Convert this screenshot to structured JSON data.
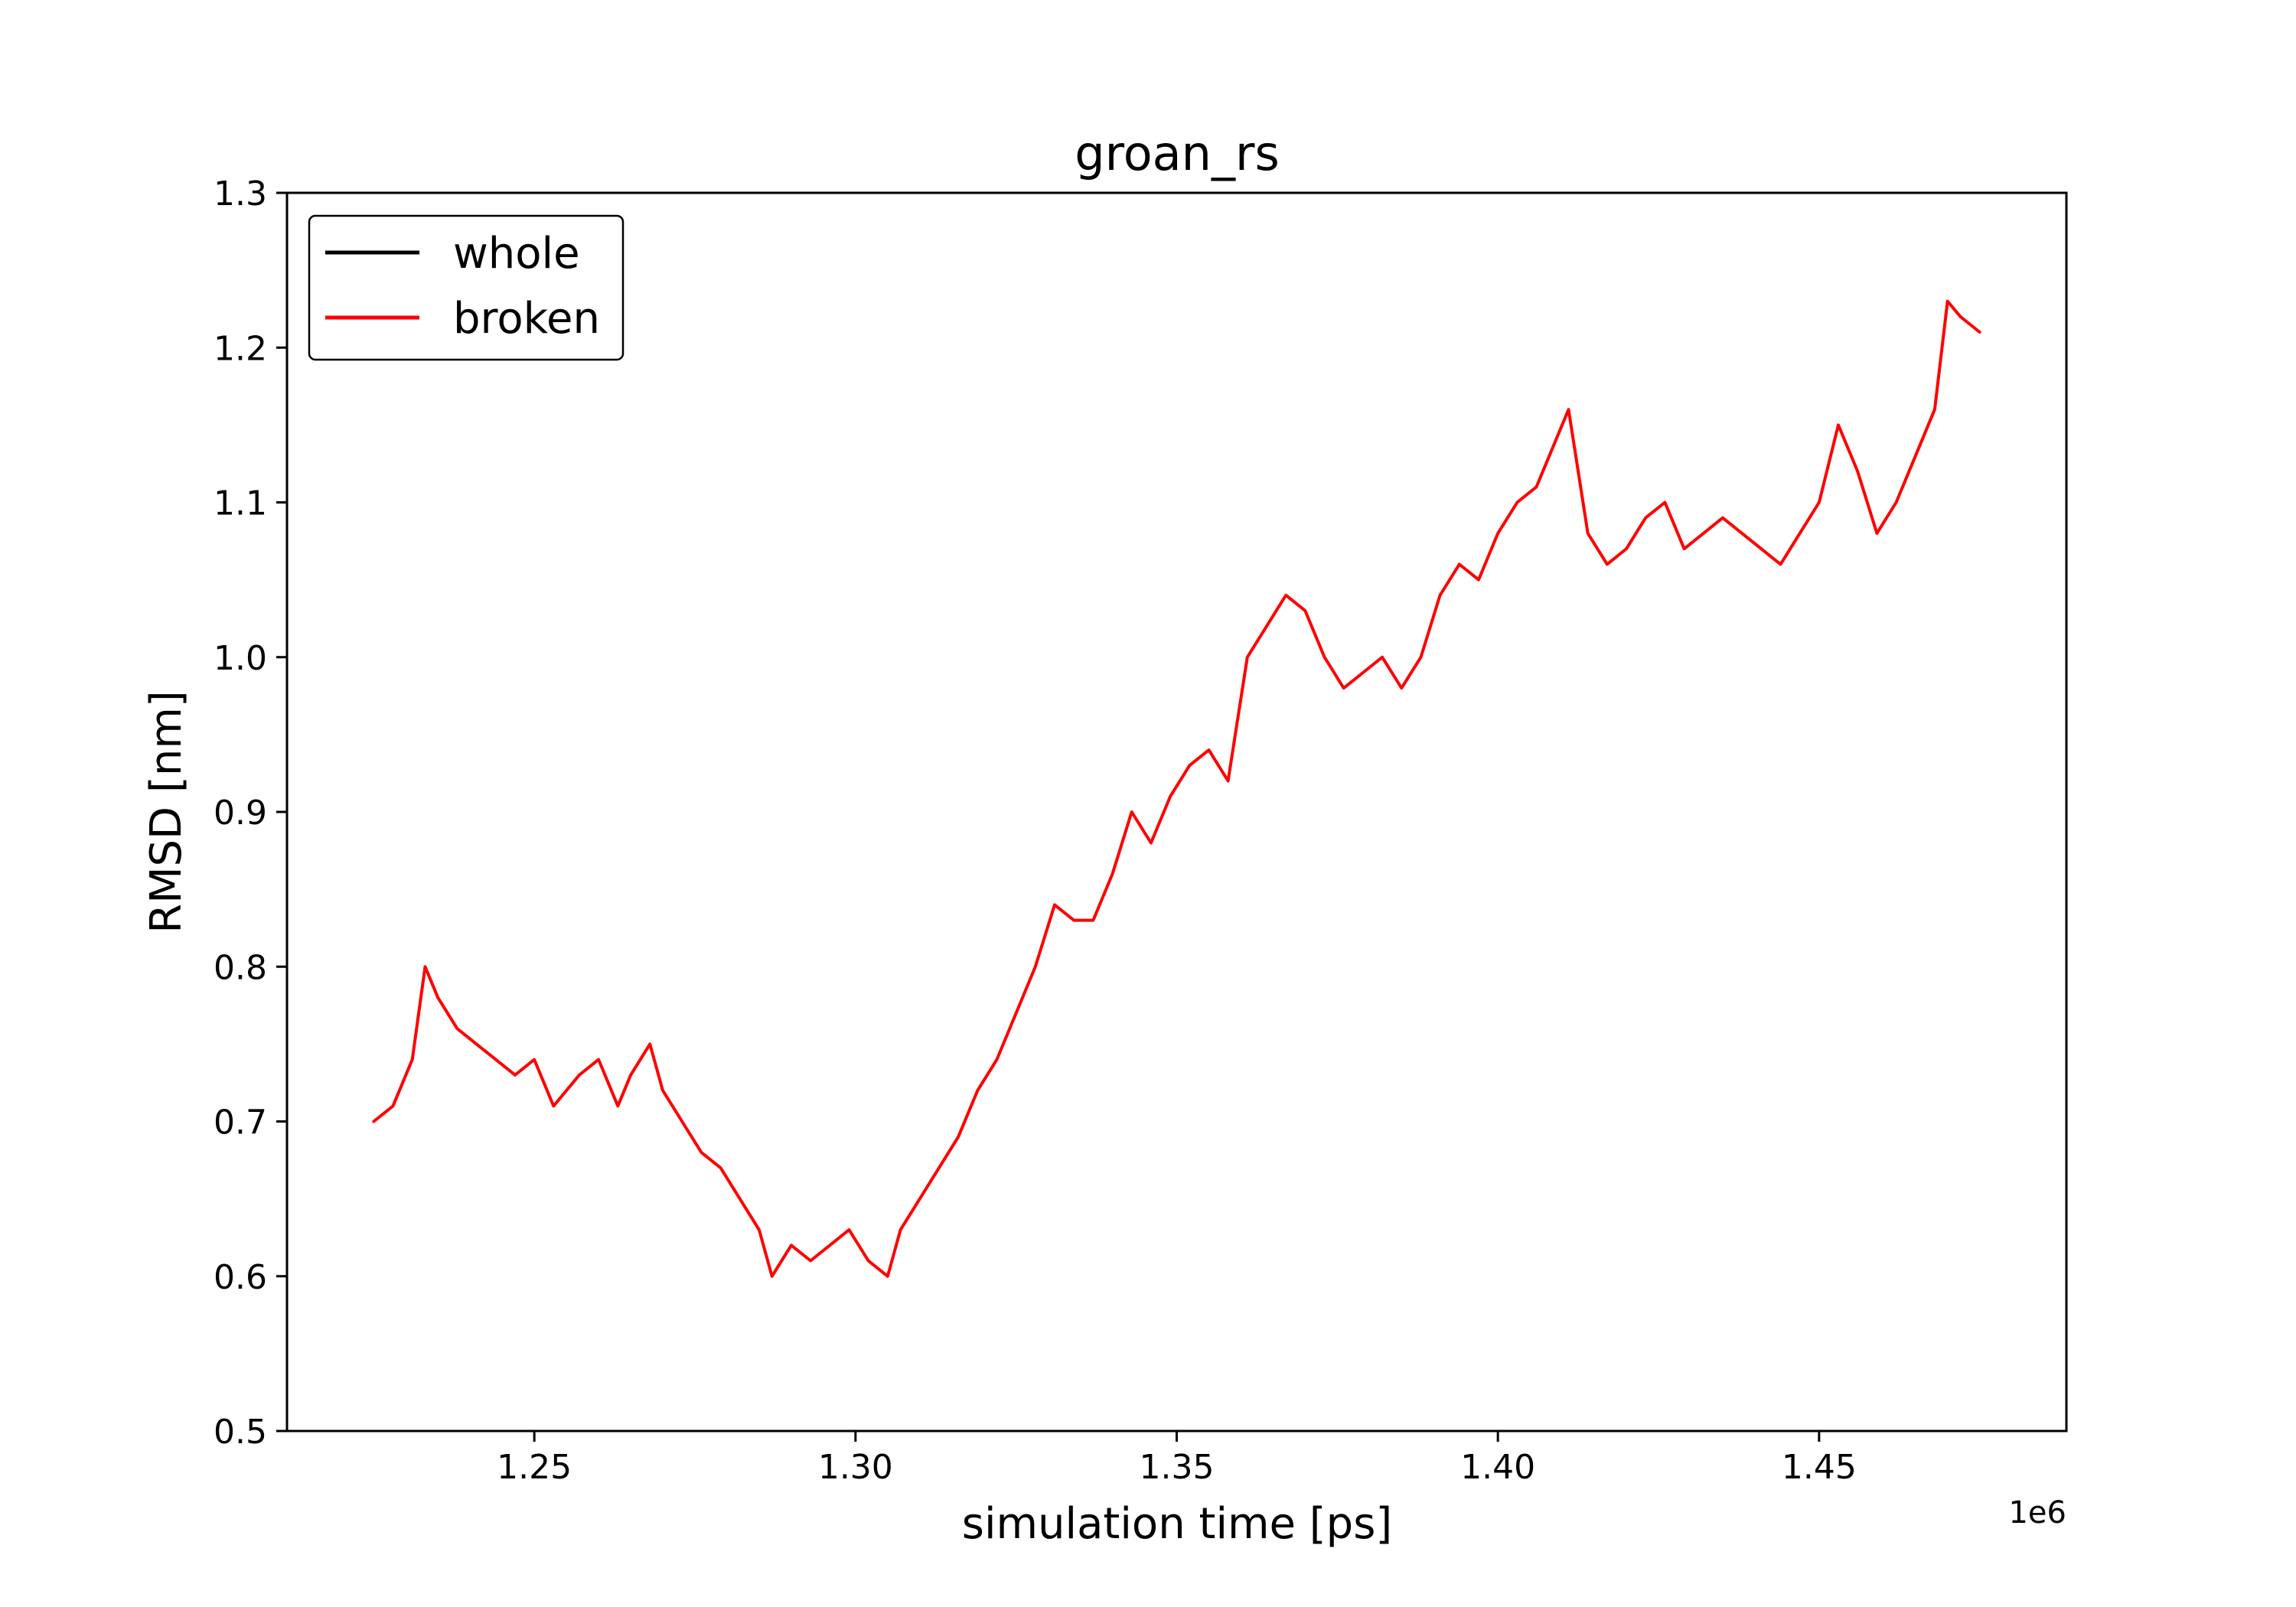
{
  "chart_data": {
    "type": "line",
    "title": "groan_rs",
    "xlabel": "simulation time [ps]",
    "ylabel": "RMSD [nm]",
    "x_offset_label": "1e6",
    "xlim": [
      1.2115,
      1.4885
    ],
    "ylim": [
      0.5,
      1.3
    ],
    "xticks": [
      1.25,
      1.3,
      1.35,
      1.4,
      1.45
    ],
    "xtick_labels": [
      "1.25",
      "1.30",
      "1.35",
      "1.40",
      "1.45"
    ],
    "yticks": [
      0.5,
      0.6,
      0.7,
      0.8,
      0.9,
      1.0,
      1.1,
      1.2,
      1.3
    ],
    "ytick_labels": [
      "0.5",
      "0.6",
      "0.7",
      "0.8",
      "0.9",
      "1.0",
      "1.1",
      "1.2",
      "1.3"
    ],
    "grid": false,
    "legend_position": "top-left",
    "series": [
      {
        "name": "whole",
        "color": "#000000",
        "x": [],
        "y": []
      },
      {
        "name": "broken",
        "color": "#ff0000",
        "x": [
          1.225,
          1.228,
          1.231,
          1.233,
          1.235,
          1.238,
          1.241,
          1.244,
          1.247,
          1.25,
          1.253,
          1.255,
          1.257,
          1.26,
          1.263,
          1.265,
          1.268,
          1.27,
          1.273,
          1.276,
          1.279,
          1.282,
          1.285,
          1.287,
          1.29,
          1.293,
          1.296,
          1.299,
          1.302,
          1.305,
          1.307,
          1.31,
          1.313,
          1.316,
          1.319,
          1.322,
          1.325,
          1.328,
          1.331,
          1.334,
          1.337,
          1.34,
          1.343,
          1.346,
          1.349,
          1.352,
          1.355,
          1.358,
          1.361,
          1.364,
          1.367,
          1.37,
          1.373,
          1.376,
          1.379,
          1.382,
          1.385,
          1.388,
          1.391,
          1.394,
          1.397,
          1.4,
          1.403,
          1.406,
          1.409,
          1.411,
          1.414,
          1.417,
          1.42,
          1.423,
          1.426,
          1.429,
          1.432,
          1.435,
          1.438,
          1.441,
          1.444,
          1.447,
          1.45,
          1.453,
          1.456,
          1.459,
          1.462,
          1.465,
          1.468,
          1.47,
          1.472,
          1.475
        ],
        "y": [
          0.7,
          0.71,
          0.74,
          0.8,
          0.78,
          0.76,
          0.75,
          0.74,
          0.73,
          0.74,
          0.71,
          0.72,
          0.73,
          0.74,
          0.71,
          0.73,
          0.75,
          0.72,
          0.7,
          0.68,
          0.67,
          0.65,
          0.63,
          0.6,
          0.62,
          0.61,
          0.62,
          0.63,
          0.61,
          0.6,
          0.63,
          0.65,
          0.67,
          0.69,
          0.72,
          0.74,
          0.77,
          0.8,
          0.84,
          0.83,
          0.83,
          0.86,
          0.9,
          0.88,
          0.91,
          0.93,
          0.94,
          0.92,
          1.0,
          1.02,
          1.04,
          1.03,
          1.0,
          0.98,
          0.99,
          1.0,
          0.98,
          1.0,
          1.04,
          1.06,
          1.05,
          1.08,
          1.1,
          1.11,
          1.14,
          1.16,
          1.08,
          1.06,
          1.07,
          1.09,
          1.1,
          1.07,
          1.08,
          1.09,
          1.08,
          1.07,
          1.06,
          1.08,
          1.1,
          1.15,
          1.12,
          1.08,
          1.1,
          1.13,
          1.16,
          1.23,
          1.22,
          1.21
        ]
      }
    ]
  }
}
